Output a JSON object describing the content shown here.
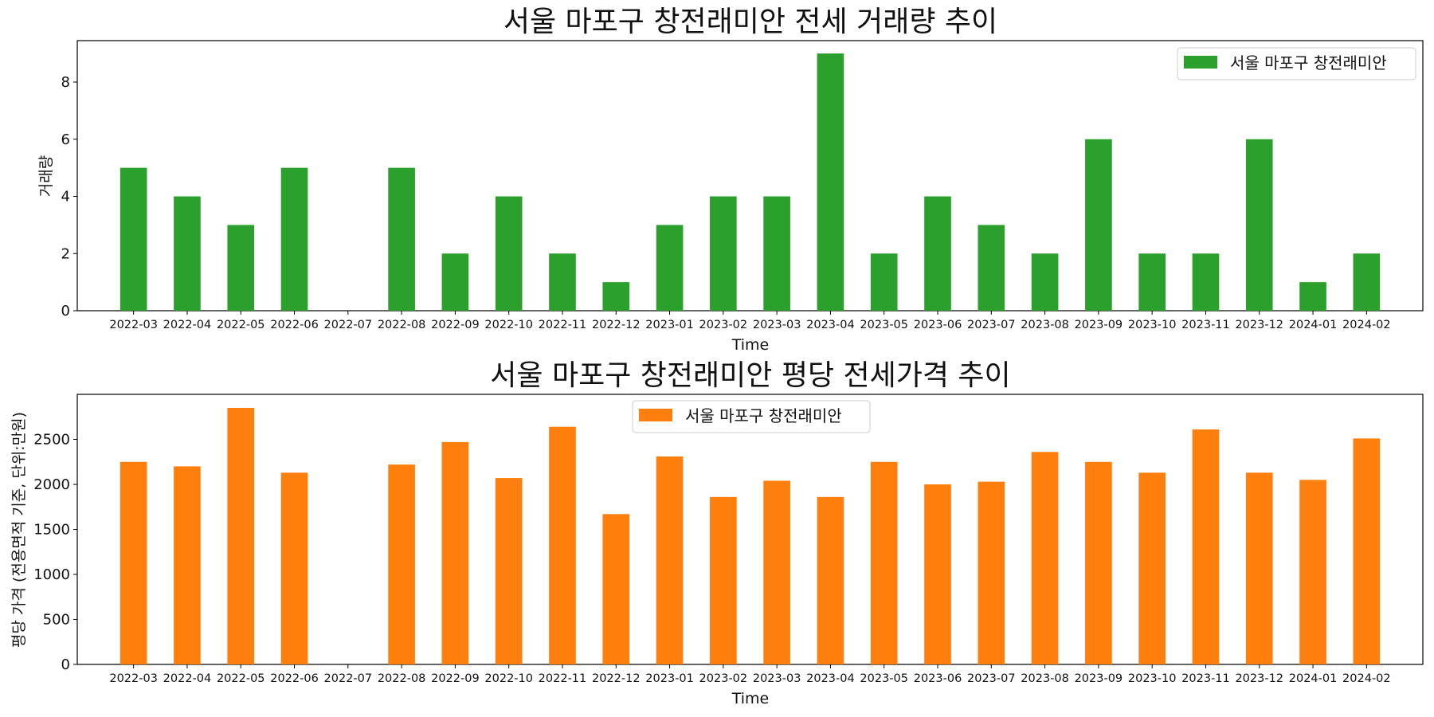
{
  "chart_data": [
    {
      "type": "bar",
      "title": "서울 마포구 창전래미안 전세 거래량 추이",
      "xlabel": "Time",
      "ylabel": "거래량",
      "categories": [
        "2022-03",
        "2022-04",
        "2022-05",
        "2022-06",
        "2022-07",
        "2022-08",
        "2022-09",
        "2022-10",
        "2022-11",
        "2022-12",
        "2023-01",
        "2023-02",
        "2023-03",
        "2023-04",
        "2023-05",
        "2023-06",
        "2023-07",
        "2023-08",
        "2023-09",
        "2023-10",
        "2023-11",
        "2023-12",
        "2024-01",
        "2024-02"
      ],
      "series": [
        {
          "name": "서울 마포구 창전래미안",
          "color": "#2ca02c",
          "values": [
            5,
            4,
            3,
            5,
            0,
            5,
            2,
            4,
            2,
            1,
            3,
            4,
            4,
            9,
            2,
            4,
            3,
            2,
            6,
            2,
            2,
            6,
            1,
            2
          ]
        }
      ],
      "ylim": [
        0,
        9.45
      ],
      "yticks": [
        0,
        2,
        4,
        6,
        8
      ],
      "legend": "upper-right",
      "grid": false
    },
    {
      "type": "bar",
      "title": "서울 마포구 창전래미안 평당 전세가격 추이",
      "xlabel": "Time",
      "ylabel": "평당 가격 (전용면적 기준, 단위:만원)",
      "categories": [
        "2022-03",
        "2022-04",
        "2022-05",
        "2022-06",
        "2022-07",
        "2022-08",
        "2022-09",
        "2022-10",
        "2022-11",
        "2022-12",
        "2023-01",
        "2023-02",
        "2023-03",
        "2023-04",
        "2023-05",
        "2023-06",
        "2023-07",
        "2023-08",
        "2023-09",
        "2023-10",
        "2023-11",
        "2023-12",
        "2024-01",
        "2024-02"
      ],
      "series": [
        {
          "name": "서울 마포구 창전래미안",
          "color": "#ff7f0e",
          "values": [
            2250,
            2200,
            2850,
            2130,
            0,
            2220,
            2470,
            2070,
            2640,
            1670,
            2310,
            1860,
            2040,
            1860,
            2250,
            2000,
            2030,
            2360,
            2250,
            2130,
            2610,
            2130,
            2050,
            2510
          ]
        }
      ],
      "ylim": [
        0,
        3000
      ],
      "yticks": [
        0,
        500,
        1000,
        1500,
        2000,
        2500
      ],
      "legend": "upper-center",
      "grid": false
    }
  ]
}
